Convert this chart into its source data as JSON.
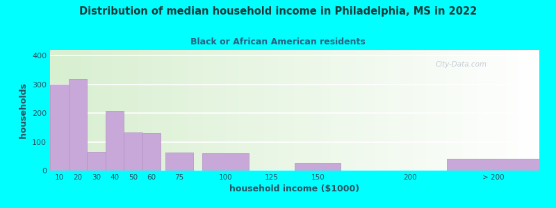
{
  "title": "Distribution of median household income in Philadelphia, MS in 2022",
  "subtitle": "Black or African American residents",
  "xlabel": "household income ($1000)",
  "ylabel": "households",
  "background_outer": "#00FFFF",
  "bar_color": "#c8a8d8",
  "bar_edge_color": "#b090c0",
  "title_color": "#1a3a3a",
  "subtitle_color": "#2a6080",
  "axis_label_color": "#2a5060",
  "tick_label_color": "#2a5060",
  "values": [
    300,
    318,
    65,
    208,
    133,
    130,
    62,
    60,
    0,
    27,
    0,
    40
  ],
  "ylim": [
    0,
    420
  ],
  "yticks": [
    0,
    100,
    200,
    300,
    400
  ],
  "watermark": "City-Data.com",
  "bg_color_left": "#d8efd0",
  "bg_color_right": "#ffffff"
}
